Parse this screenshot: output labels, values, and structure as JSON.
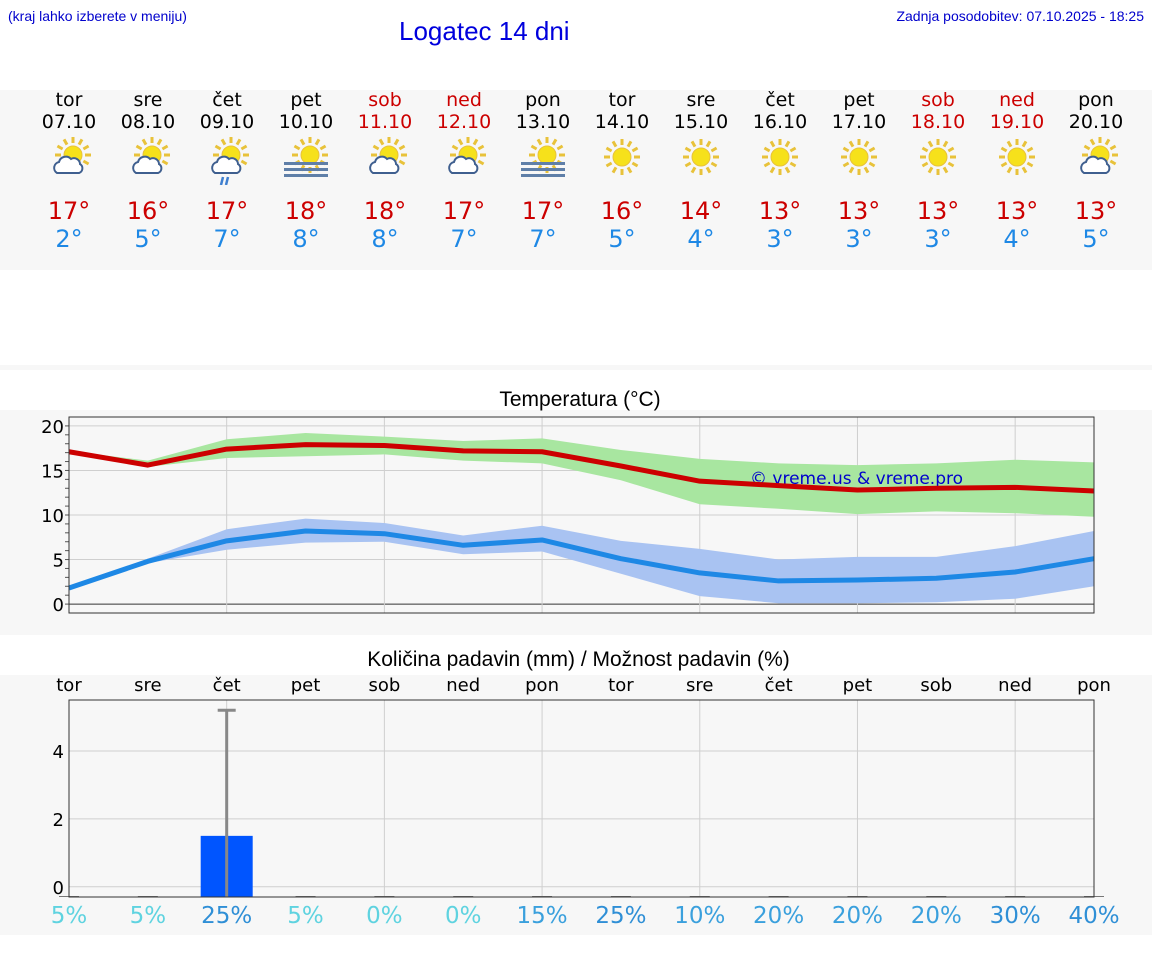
{
  "header": {
    "hint": "(kraj lahko izberete v meniju)",
    "title": "Logatec 14 dni",
    "updated": "Zadnja posodobitev: 07.10.2025 - 18:25"
  },
  "colors": {
    "max": "#cc0000",
    "min": "#1e88e5",
    "link": "#0000cc",
    "bar": "#0055ff"
  },
  "days": [
    {
      "name": "tor",
      "date": "07.10",
      "weekend": false,
      "icon": "sun-cloud-icon",
      "max": "17°",
      "min": "2°"
    },
    {
      "name": "sre",
      "date": "08.10",
      "weekend": false,
      "icon": "sun-cloud-icon",
      "max": "16°",
      "min": "5°"
    },
    {
      "name": "čet",
      "date": "09.10",
      "weekend": false,
      "icon": "sun-cloud-rain-icon",
      "max": "17°",
      "min": "7°"
    },
    {
      "name": "pet",
      "date": "10.10",
      "weekend": false,
      "icon": "sun-fog-icon",
      "max": "18°",
      "min": "8°"
    },
    {
      "name": "sob",
      "date": "11.10",
      "weekend": true,
      "icon": "sun-cloud-icon",
      "max": "18°",
      "min": "8°"
    },
    {
      "name": "ned",
      "date": "12.10",
      "weekend": true,
      "icon": "sun-cloud-icon",
      "max": "17°",
      "min": "7°"
    },
    {
      "name": "pon",
      "date": "13.10",
      "weekend": false,
      "icon": "sun-fog-icon",
      "max": "17°",
      "min": "7°"
    },
    {
      "name": "tor",
      "date": "14.10",
      "weekend": false,
      "icon": "sun-icon",
      "max": "16°",
      "min": "5°"
    },
    {
      "name": "sre",
      "date": "15.10",
      "weekend": false,
      "icon": "sun-icon",
      "max": "14°",
      "min": "4°"
    },
    {
      "name": "čet",
      "date": "16.10",
      "weekend": false,
      "icon": "sun-icon",
      "max": "13°",
      "min": "3°"
    },
    {
      "name": "pet",
      "date": "17.10",
      "weekend": false,
      "icon": "sun-icon",
      "max": "13°",
      "min": "3°"
    },
    {
      "name": "sob",
      "date": "18.10",
      "weekend": true,
      "icon": "sun-icon",
      "max": "13°",
      "min": "3°"
    },
    {
      "name": "ned",
      "date": "19.10",
      "weekend": true,
      "icon": "sun-icon",
      "max": "13°",
      "min": "4°"
    },
    {
      "name": "pon",
      "date": "20.10",
      "weekend": false,
      "icon": "sun-cloud-icon",
      "max": "13°",
      "min": "5°"
    }
  ],
  "chart_data": [
    {
      "type": "line",
      "title": "Temperatura (°C)",
      "ylim": [
        -1,
        21
      ],
      "yticks": [
        0,
        5,
        10,
        15,
        20
      ],
      "x": [
        0,
        1,
        2,
        3,
        4,
        5,
        6,
        7,
        8,
        9,
        10,
        11,
        12,
        13
      ],
      "watermark": "© vreme.us & vreme.pro",
      "series": [
        {
          "name": "max",
          "values": [
            17.1,
            15.6,
            17.4,
            17.9,
            17.8,
            17.2,
            17.1,
            15.5,
            13.8,
            13.3,
            12.8,
            13.0,
            13.1,
            12.7
          ],
          "low": [
            17.0,
            15.4,
            16.4,
            16.6,
            16.8,
            16.1,
            15.8,
            13.9,
            11.2,
            10.7,
            10.1,
            10.4,
            10.2,
            9.8
          ],
          "high": [
            17.2,
            16.1,
            18.5,
            19.2,
            18.8,
            18.3,
            18.6,
            17.3,
            16.3,
            15.8,
            15.6,
            15.8,
            16.2,
            15.9
          ]
        },
        {
          "name": "min",
          "values": [
            1.8,
            4.8,
            7.1,
            8.2,
            7.9,
            6.6,
            7.2,
            5.1,
            3.5,
            2.6,
            2.7,
            2.9,
            3.6,
            5.1
          ],
          "low": [
            1.7,
            4.6,
            6.1,
            6.9,
            7.0,
            5.6,
            5.9,
            3.4,
            0.9,
            0.1,
            0.1,
            0.2,
            0.6,
            2.0
          ],
          "high": [
            1.9,
            5.1,
            8.4,
            9.6,
            9.1,
            7.7,
            8.8,
            7.1,
            6.2,
            5.0,
            5.3,
            5.3,
            6.5,
            8.2
          ]
        }
      ]
    },
    {
      "type": "bar",
      "title": "Količina padavin (mm) / Možnost padavin (%)",
      "ylim": [
        -0.3,
        5.5
      ],
      "yticks": [
        0,
        2,
        4
      ],
      "categories": [
        "tor",
        "sre",
        "čet",
        "pet",
        "sob",
        "ned",
        "pon",
        "tor",
        "sre",
        "čet",
        "pet",
        "sob",
        "ned",
        "pon"
      ],
      "values": [
        0,
        0,
        1.5,
        0,
        0,
        0,
        0,
        0,
        0,
        0,
        0,
        0,
        0,
        0
      ],
      "error_high": [
        0,
        0,
        5.2,
        0,
        0,
        0,
        0,
        0,
        0,
        0,
        0,
        0,
        0,
        0
      ],
      "probability": [
        "5%",
        "5%",
        "25%",
        "5%",
        "0%",
        "0%",
        "15%",
        "25%",
        "10%",
        "20%",
        "20%",
        "20%",
        "30%",
        "40%"
      ]
    }
  ]
}
